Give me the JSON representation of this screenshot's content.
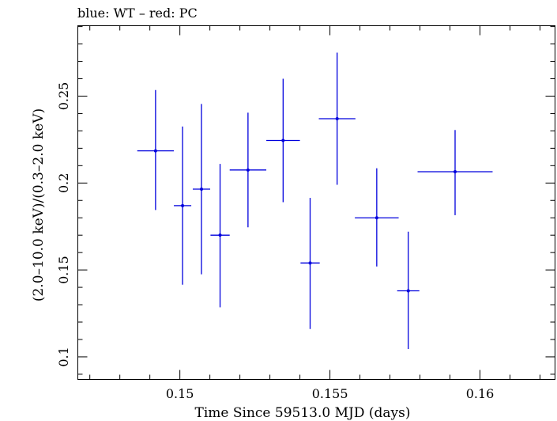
{
  "chart_data": {
    "type": "scatter",
    "title": "blue: WT – red: PC",
    "xlabel": "Time Since 59513.0 MJD (days)",
    "ylabel": "(2.0–10.0 keV)/(0.3–2.0 keV)",
    "xlim": [
      0.1466,
      0.1625
    ],
    "ylim": [
      0.087,
      0.2905
    ],
    "xticks": [
      0.15,
      0.155,
      0.16
    ],
    "xtick_labels": [
      "0.15",
      "0.155",
      "0.16"
    ],
    "yticks": [
      0.1,
      0.15,
      0.2,
      0.25
    ],
    "ytick_labels": [
      "0.1",
      "0.15",
      "0.2",
      "0.25"
    ],
    "grid": false,
    "series": [
      {
        "color": "#0000dd",
        "points": [
          {
            "x": 0.14919,
            "xerr": 0.00061,
            "y": 0.2185,
            "ylo": 0.1845,
            "yhi": 0.2535
          },
          {
            "x": 0.15009,
            "xerr": 0.00029,
            "y": 0.187,
            "ylo": 0.1415,
            "yhi": 0.2325
          },
          {
            "x": 0.15072,
            "xerr": 0.00029,
            "y": 0.1965,
            "ylo": 0.1475,
            "yhi": 0.2455
          },
          {
            "x": 0.15134,
            "xerr": 0.00032,
            "y": 0.17,
            "ylo": 0.1285,
            "yhi": 0.211
          },
          {
            "x": 0.15227,
            "xerr": 0.00061,
            "y": 0.2075,
            "ylo": 0.1745,
            "yhi": 0.2405
          },
          {
            "x": 0.15344,
            "xerr": 0.00056,
            "y": 0.2245,
            "ylo": 0.189,
            "yhi": 0.26
          },
          {
            "x": 0.15434,
            "xerr": 0.00032,
            "y": 0.154,
            "ylo": 0.116,
            "yhi": 0.1915
          },
          {
            "x": 0.15524,
            "xerr": 0.00061,
            "y": 0.237,
            "ylo": 0.199,
            "yhi": 0.275
          },
          {
            "x": 0.15656,
            "xerr": 0.00073,
            "y": 0.18,
            "ylo": 0.152,
            "yhi": 0.2085
          },
          {
            "x": 0.15761,
            "xerr": 0.00037,
            "y": 0.138,
            "ylo": 0.1045,
            "yhi": 0.172
          },
          {
            "x": 0.15917,
            "xerr": 0.00125,
            "y": 0.2065,
            "ylo": 0.1815,
            "yhi": 0.2305
          }
        ]
      }
    ]
  }
}
